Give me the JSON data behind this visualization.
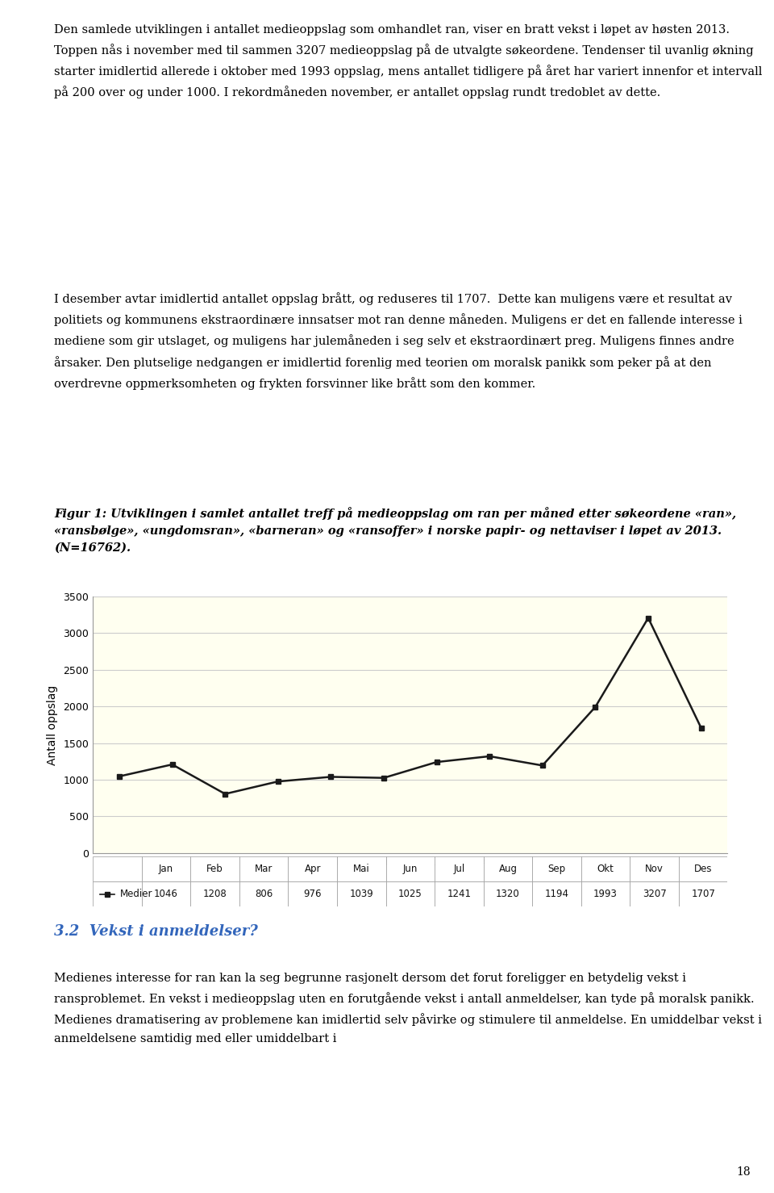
{
  "months": [
    "Jan",
    "Feb",
    "Mar",
    "Apr",
    "Mai",
    "Jun",
    "Jul",
    "Aug",
    "Sep",
    "Okt",
    "Nov",
    "Des"
  ],
  "values": [
    1046,
    1208,
    806,
    976,
    1039,
    1025,
    1241,
    1320,
    1194,
    1993,
    3207,
    1707
  ],
  "legend_label": "Medier",
  "ylabel": "Antall oppslag",
  "ylim": [
    0,
    3500
  ],
  "yticks": [
    0,
    500,
    1000,
    1500,
    2000,
    2500,
    3000,
    3500
  ],
  "bg_color": "#FFFFF0",
  "line_color": "#1a1a1a",
  "marker_style": "s",
  "marker_size": 5,
  "line_width": 1.8,
  "grid_color": "#cccccc",
  "title_text": "Figur 1: Utviklingen i samlet antallet treff på medieoppslag om ran per måned etter søkeordene «ran», «ransbølge», «ungdomsran», «barneran» og «ransoffer» i norske papir- og nettaviser i løpet av 2013. (N=16762).",
  "body_text_1": "Den samlede utviklingen i antallet medieoppslag som omhandlet ran, viser en bratt vekst i løpet av høsten 2013. Toppen nås i november med til sammen 3207 medieoppslag på de utvalgte søkeordene. Tendenser til uvanlig økning starter imidlertid allerede i oktober med 1993 oppslag, mens antallet tidligere på året har variert innenfor et intervall på 200 over og under 1000. I rekordmåneden november, er antallet oppslag rundt tredoblet av dette.",
  "body_text_2": "I desember avtar imidlertid antallet oppslag brått, og reduseres til 1707.  Dette kan muligens være et resultat av politiets og kommunens ekstraordinære innsatser mot ran denne måneden. Muligens er det en fallende interesse i mediene som gir utslaget, og muligens har julemåneden i seg selv et ekstraordinært preg. Muligens finnes andre årsaker. Den plutselige nedgangen er imidlertid forenlig med teorien om moralsk panikk som peker på at den overdrevne oppmerksomheten og frykten forsvinner like brått som den kommer.",
  "body_text_3": "3.2  Vekst i anmeldelser?",
  "body_text_4": "Medienes interesse for ran kan la seg begrunne rasjonelt dersom det forut foreligger en betydelig vekst i ransproblemet. En vekst i medieoppslag uten en forutgående vekst i antall anmeldelser, kan tyde på moralsk panikk. Medienes dramatisering av problemene kan imidlertid selv påvirke og stimulere til anmeldelse. En umiddelbar vekst i anmeldelsene samtidig med eller umiddelbart i",
  "page_number": "18",
  "table_border_color": "#999999",
  "table_bg_color": "#ffffff"
}
